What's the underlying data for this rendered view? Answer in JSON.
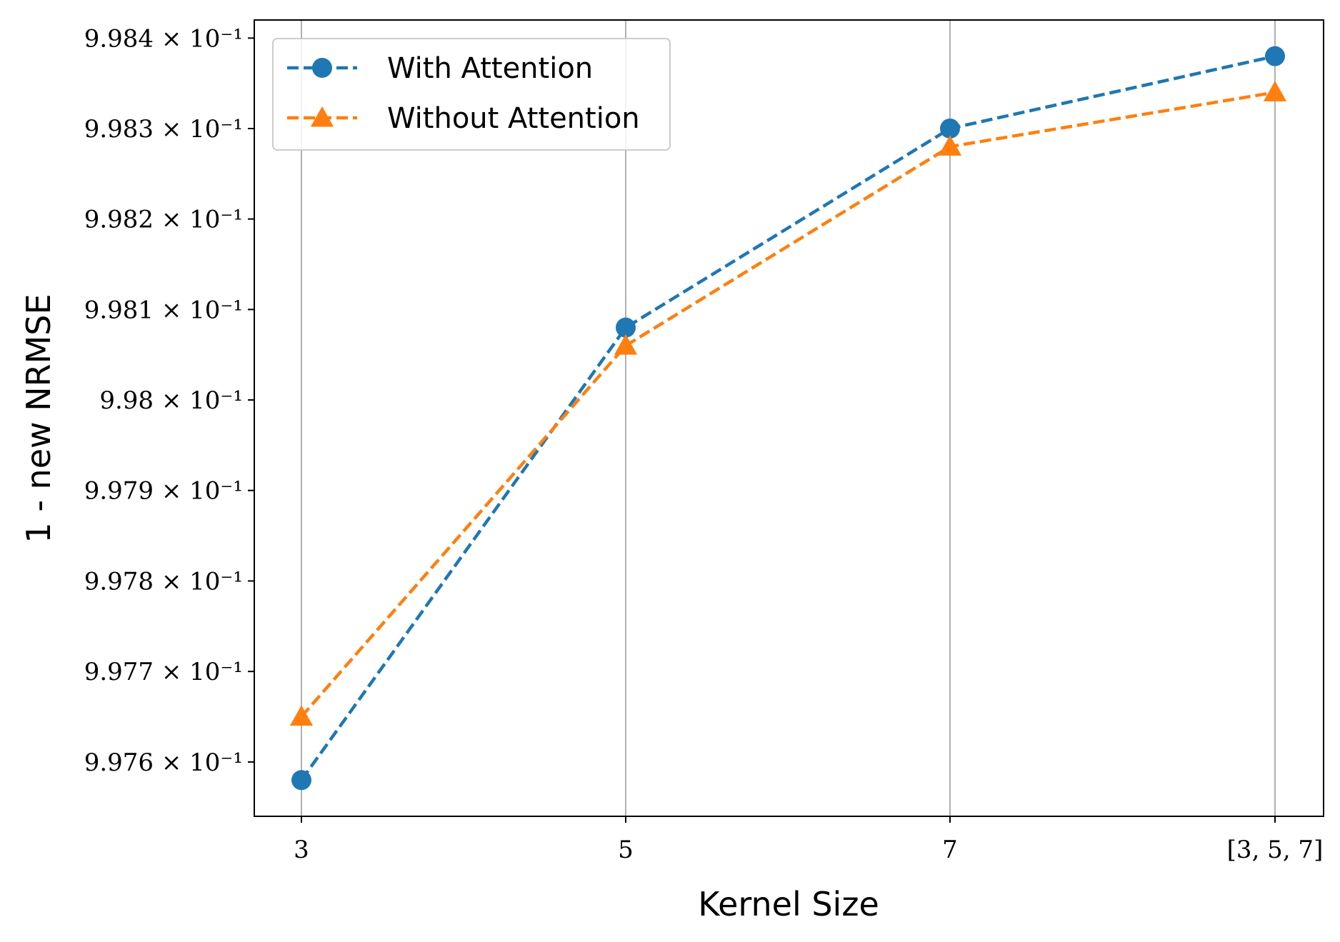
{
  "chart_data": {
    "type": "line",
    "title": "",
    "xlabel": "Kernel Size",
    "ylabel": "1 - new NRMSE",
    "categories": [
      "3",
      "5",
      "7",
      "[3, 5, 7]"
    ],
    "y_tick_values": [
      0.9976,
      0.9977,
      0.9978,
      0.9979,
      0.998,
      0.9981,
      0.9982,
      0.9983,
      0.9984
    ],
    "y_tick_labels": [
      "9.976 × 10⁻¹",
      "9.977 × 10⁻¹",
      "9.978 × 10⁻¹",
      "9.979 × 10⁻¹",
      "9.98 × 10⁻¹",
      "9.981 × 10⁻¹",
      "9.982 × 10⁻¹",
      "9.983 × 10⁻¹",
      "9.984 × 10⁻¹"
    ],
    "ylim": [
      0.99754,
      0.99842
    ],
    "yscale": "log",
    "grid": "x",
    "legend_position": "top-left",
    "series": [
      {
        "name": "With Attention",
        "values": [
          0.99758,
          0.99808,
          0.9983,
          0.99838
        ],
        "color": "#1f77b4",
        "marker": "circle",
        "linestyle": "dashed"
      },
      {
        "name": "Without Attention",
        "values": [
          0.99765,
          0.99806,
          0.99828,
          0.99834
        ],
        "color": "#ff7f0e",
        "marker": "triangle",
        "linestyle": "dashed"
      }
    ]
  }
}
